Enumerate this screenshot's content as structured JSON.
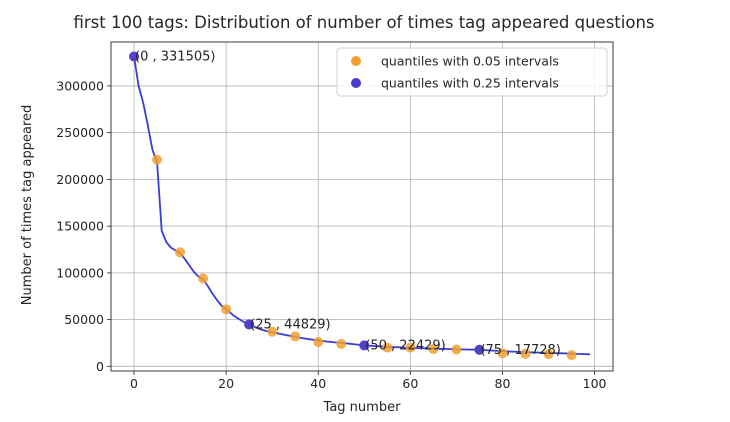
{
  "chart_data": {
    "type": "scatter",
    "title": "first 100 tags: Distribution of number of times tag appeared questions",
    "xlabel": "Tag number",
    "ylabel": "Number of times tag appeared",
    "xlim": [
      -5,
      104
    ],
    "ylim": [
      -5000,
      347000
    ],
    "xticks": [
      0,
      20,
      40,
      60,
      80,
      100
    ],
    "yticks": [
      0,
      50000,
      100000,
      150000,
      200000,
      250000,
      300000
    ],
    "grid": true,
    "legend_position": "top-right",
    "line": {
      "color": "#3b3bd6",
      "x": [
        0,
        1,
        2,
        3,
        4,
        5,
        6,
        7,
        8,
        9,
        10,
        11,
        12,
        13,
        14,
        15,
        16,
        17,
        18,
        19,
        20,
        21,
        22,
        23,
        24,
        25,
        26,
        27,
        28,
        29,
        30,
        32,
        34,
        36,
        38,
        40,
        42,
        44,
        46,
        48,
        50,
        52,
        54,
        56,
        58,
        60,
        62,
        64,
        66,
        68,
        70,
        72,
        74,
        75,
        78,
        80,
        82,
        85,
        88,
        90,
        93,
        95,
        97,
        99
      ],
      "y": [
        331505,
        300000,
        282000,
        258000,
        232000,
        218000,
        145000,
        133000,
        127000,
        124000,
        121000,
        115000,
        108000,
        101000,
        96000,
        93000,
        86000,
        78000,
        71000,
        65000,
        61000,
        57000,
        53000,
        50000,
        47000,
        44829,
        42500,
        40500,
        38800,
        37500,
        36500,
        34500,
        32500,
        30500,
        29000,
        27700,
        26500,
        25500,
        24600,
        23500,
        22429,
        21800,
        21200,
        20700,
        20200,
        19800,
        19500,
        19200,
        18800,
        18500,
        18200,
        18000,
        17800,
        17728,
        16800,
        16300,
        15800,
        15200,
        14700,
        14300,
        13900,
        13500,
        13200,
        12900
      ]
    },
    "series": [
      {
        "name": "quantiles with 0.05 intervals",
        "color": "#f0a030",
        "x": [
          0,
          5,
          10,
          15,
          20,
          25,
          30,
          35,
          40,
          45,
          50,
          55,
          60,
          65,
          70,
          75,
          80,
          85,
          90,
          95
        ],
        "y": [
          331505,
          221000,
          122000,
          94000,
          61000,
          44829,
          37000,
          32000,
          26000,
          24000,
          22429,
          20000,
          20000,
          18500,
          18000,
          17728,
          14000,
          13500,
          13000,
          12000
        ]
      },
      {
        "name": "quantiles with 0.25 intervals",
        "color": "#4a3bd1",
        "x": [
          0,
          25,
          50,
          75
        ],
        "y": [
          331505,
          44829,
          22429,
          17728
        ]
      }
    ],
    "annotations": [
      {
        "text": "(0 , 331505)",
        "x": 0,
        "y": 331505
      },
      {
        "text": "(25 , 44829)",
        "x": 25,
        "y": 44829
      },
      {
        "text": "(50 , 22429)",
        "x": 50,
        "y": 22429
      },
      {
        "text": "(75 , 17728)",
        "x": 75,
        "y": 17728
      }
    ]
  }
}
